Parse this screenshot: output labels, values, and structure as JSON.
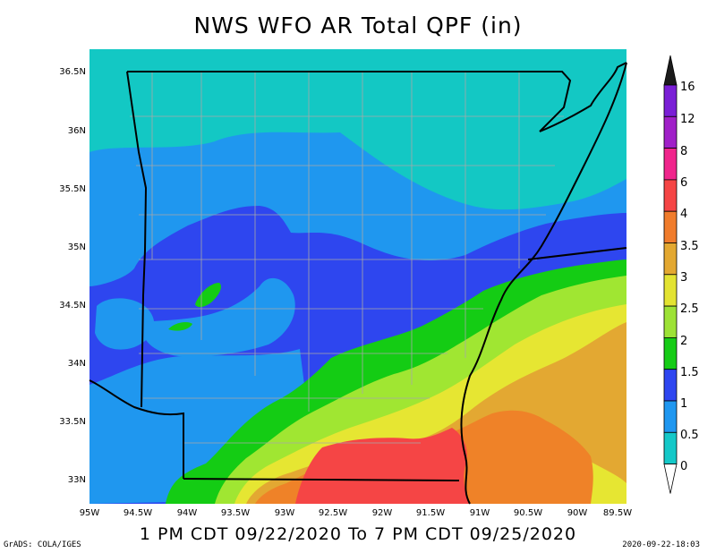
{
  "title": "NWS WFO AR Total QPF (in)",
  "subtitle": "1 PM CDT 09/22/2020 To 7 PM CDT 09/25/2020",
  "credit_left": "GrADS: COLA/IGES",
  "credit_right": "2020-09-22-18:03",
  "lat_labels": [
    "36.5N",
    "36N",
    "35.5N",
    "35N",
    "34.5N",
    "34N",
    "33.5N",
    "33N"
  ],
  "lon_labels": [
    "95W",
    "94.5W",
    "94W",
    "93.5W",
    "93W",
    "92.5W",
    "92W",
    "91.5W",
    "91W",
    "90.5W",
    "90W",
    "89.5W"
  ],
  "legend": {
    "labels": [
      "16",
      "12",
      "8",
      "6",
      "4",
      "3.5",
      "3",
      "2.5",
      "2",
      "1.5",
      "1",
      "0.5",
      "0"
    ],
    "colors": [
      "#1b1b1b",
      "#7a1fd6",
      "#a020c8",
      "#f0258c",
      "#f54545",
      "#f07c2c",
      "#e3a831",
      "#e3e332",
      "#9de236",
      "#16cc16",
      "#2e46f0",
      "#1f97f0",
      "#14c8c8"
    ]
  },
  "map": {
    "colors": {
      "c0": "#13c8c4",
      "c05": "#1f97ef",
      "c1": "#2e46ef",
      "c15": "#14cc14",
      "c2": "#a0e632",
      "c25": "#e6e632",
      "c3": "#e3a832",
      "c35": "#ef8228",
      "c4": "#f54545",
      "county": "#a8a8a8",
      "border": "#000000"
    }
  }
}
